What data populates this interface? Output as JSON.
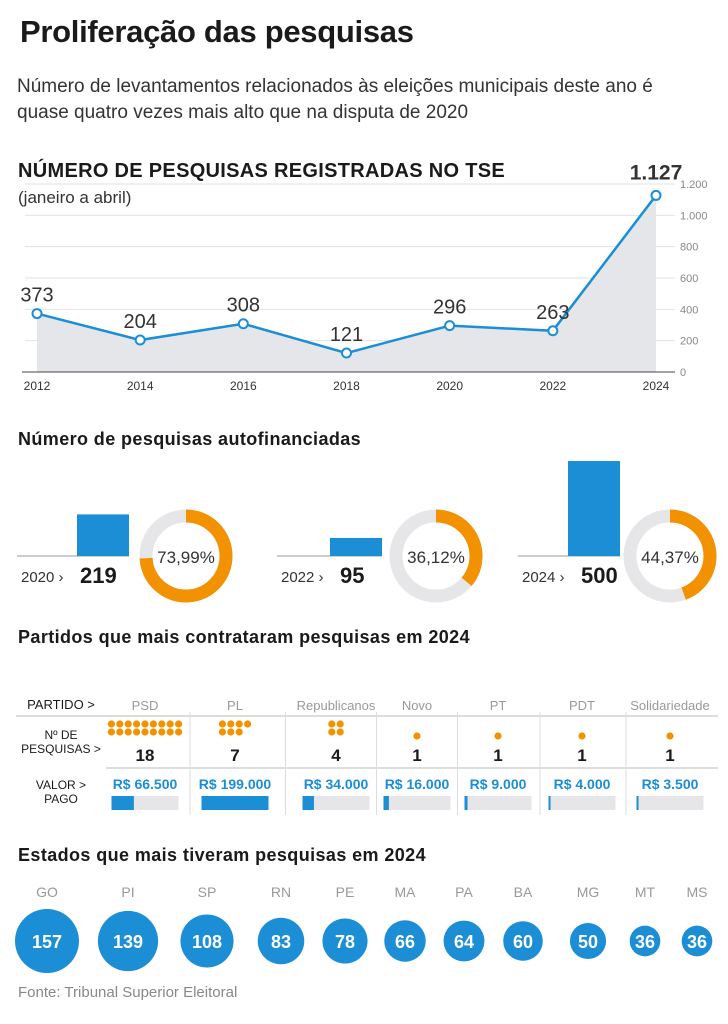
{
  "title": "Proliferação das pesquisas",
  "subtitle": "Número de levantamentos relacionados às eleições municipais deste ano é quase quatro vezes mais alto que na disputa de 2020",
  "colors": {
    "blue": "#1b8ed6",
    "orange": "#f39200",
    "gray": "#e6e6e8"
  },
  "chart_data": [
    {
      "type": "line",
      "title": "NÚMERO DE PESQUISAS REGISTRADAS NO TSE",
      "subtitle": "(janeiro a abril)",
      "x": [
        2012,
        2014,
        2016,
        2018,
        2020,
        2022,
        2024
      ],
      "values": [
        373,
        204,
        308,
        121,
        296,
        263,
        1127
      ],
      "value_labels": [
        "373",
        "204",
        "308",
        "121",
        "296",
        "263",
        "1.127"
      ],
      "x_tick_labels": [
        "2012",
        "2014",
        "2016",
        "2018",
        "2020",
        "2022",
        "2024"
      ],
      "y_ticks": [
        0,
        200,
        400,
        600,
        800,
        1000,
        1200
      ],
      "y_tick_labels": [
        "0",
        "200",
        "400",
        "600",
        "800",
        "1.000",
        "1.200"
      ],
      "ylim": [
        0,
        1200
      ],
      "y_axis_side": "right"
    },
    {
      "type": "bar",
      "title": "Número de pesquisas autofinanciadas",
      "categories": [
        "2020",
        "2022",
        "2024"
      ],
      "values": [
        219,
        95,
        500
      ],
      "value_labels": [
        "219",
        "95",
        "500"
      ],
      "share_percent": [
        73.99,
        36.12,
        44.37
      ],
      "share_labels": [
        "73,99%",
        "36,12%",
        "44,37%"
      ]
    },
    {
      "type": "table",
      "title": "Partidos que mais contrataram pesquisas em 2024",
      "row_labels": {
        "party": "PARTIDO",
        "count_1": "Nº DE",
        "count_2": "PESQUISAS",
        "value_1": "VALOR",
        "value_2": "PAGO"
      },
      "parties": [
        "PSD",
        "PL",
        "Republicanos",
        "Novo",
        "PT",
        "PDT",
        "Solidariedade"
      ],
      "counts": [
        18,
        7,
        4,
        1,
        1,
        1,
        1
      ],
      "values_brl": [
        66500,
        199000,
        34000,
        16000,
        9000,
        4000,
        3500
      ],
      "value_labels": [
        "R$ 66.500",
        "R$ 199.000",
        "R$ 34.000",
        "R$ 16.000",
        "R$ 9.000",
        "R$ 4.000",
        "R$ 3.500"
      ]
    },
    {
      "type": "bubble",
      "title": "Estados que mais tiveram pesquisas em 2024",
      "categories": [
        "GO",
        "PI",
        "SP",
        "RN",
        "PE",
        "MA",
        "PA",
        "BA",
        "MG",
        "MT",
        "MS"
      ],
      "values": [
        157,
        139,
        108,
        83,
        78,
        66,
        64,
        60,
        50,
        36,
        36
      ]
    }
  ],
  "source": "Fonte: Tribunal Superior Eleitoral"
}
